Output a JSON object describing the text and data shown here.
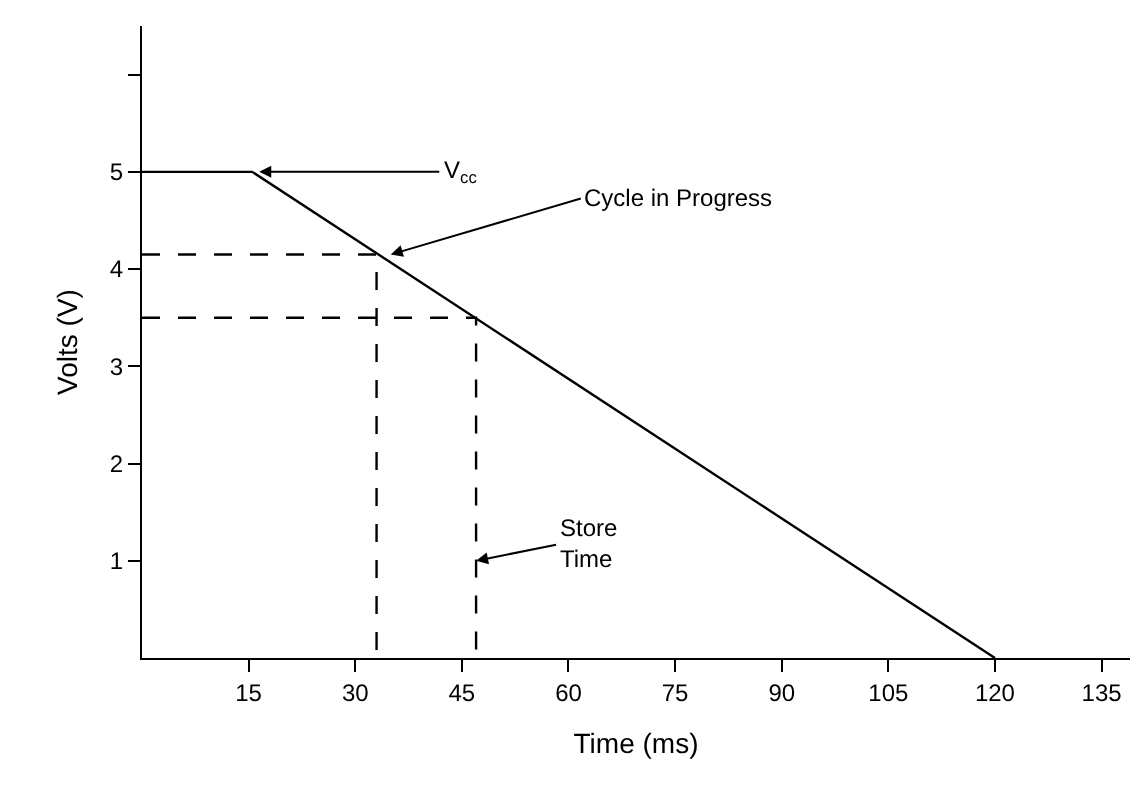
{
  "chart_data": {
    "type": "line",
    "xlabel": "Time (ms)",
    "ylabel": "Volts (V)",
    "series": [
      {
        "color": "#000000",
        "x": [
          0,
          15.5,
          120
        ],
        "values": [
          5,
          5,
          0
        ],
        "line_style": "solid"
      },
      {
        "color": "#000000",
        "x": [
          0,
          33,
          33
        ],
        "values": [
          4.15,
          4.15,
          0
        ],
        "line_style": "dashed"
      },
      {
        "color": "#000000",
        "x": [
          0,
          47,
          47
        ],
        "values": [
          3.5,
          3.5,
          0
        ],
        "line_style": "dashed"
      }
    ],
    "xlim": [
      0,
      139
    ],
    "xticks": [
      15,
      30,
      45,
      60,
      75,
      90,
      105,
      120,
      135
    ],
    "ylim": [
      0,
      6.5
    ],
    "yticks": [
      1,
      2,
      3,
      4,
      5,
      {
        "value": 6,
        "label": null
      }
    ],
    "marker": "none",
    "annotations": [
      {
        "text": "V$_{cc}$",
        "x": 16.5,
        "y": 5
      },
      {
        "text": "Cycle in Progress",
        "x": 35,
        "y": 4.15
      },
      {
        "text": "Store\nTime",
        "x": 47,
        "y": 1
      }
    ]
  }
}
